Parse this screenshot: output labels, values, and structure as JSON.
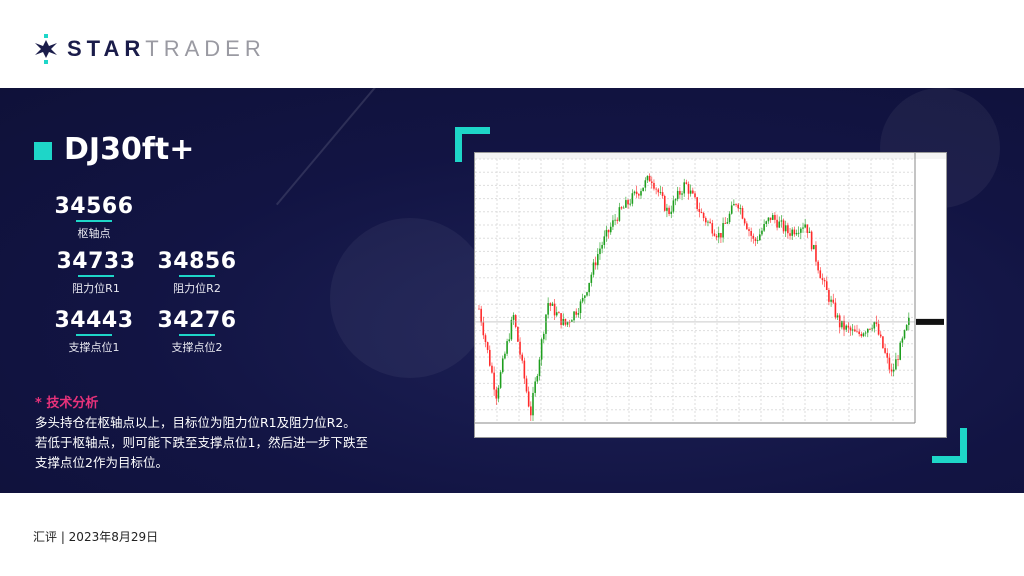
{
  "brand": {
    "part1": "STAR",
    "part2": "TRADER"
  },
  "title": "DJ30ft+",
  "levels": {
    "pivot": {
      "value": "34566",
      "label": "枢轴点"
    },
    "r1": {
      "value": "34733",
      "label": "阻力位R1"
    },
    "r2": {
      "value": "34856",
      "label": "阻力位R2"
    },
    "s1": {
      "value": "34443",
      "label": "支撑点位1"
    },
    "s2": {
      "value": "34276",
      "label": "支撑点位2"
    }
  },
  "analysis": {
    "heading": "* 技术分析",
    "lines": [
      "多头持仓在枢轴点以上，目标位为阻力位R1及阻力位R2。",
      "若低于枢轴点，则可能下跌至支撑点位1，然后进一步下跌至",
      "支撑点位2作为目标位。"
    ]
  },
  "footer": "汇评 | 2023年8月29日",
  "colors": {
    "accent": "#1ed6c8",
    "banner": "#121443",
    "up": "#1e9e1e",
    "down": "#ff2a2a",
    "highlight": "#e8327a"
  },
  "chart_data": {
    "type": "candlestick",
    "anchor_closes": [
      34566,
      33916,
      34516,
      33766,
      34616,
      34441,
      34616,
      35016,
      35266,
      35416,
      35566,
      35291,
      35516,
      35266,
      35116,
      35391,
      35066,
      35266,
      35141,
      35216,
      34766,
      34441,
      34366,
      34466,
      34066,
      34466
    ],
    "ylim": [
      33700,
      35700
    ],
    "grid": true
  }
}
